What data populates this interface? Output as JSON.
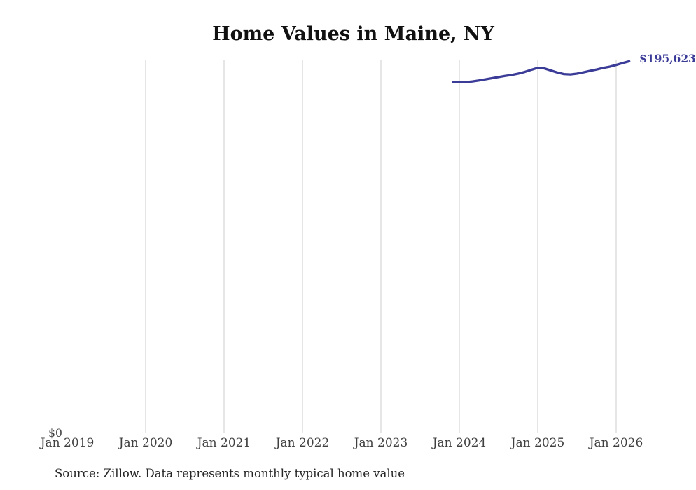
{
  "chart_data": {
    "type": "line",
    "title": "Home Values in Maine, NY",
    "source": "Source: Zillow. Data represents monthly typical home value",
    "line_color": "#3b3b98",
    "grid_color": "#cccccc",
    "grid": "vertical-only",
    "x_tick_labels": [
      "Jan 2019",
      "Jan 2020",
      "Jan 2021",
      "Jan 2022",
      "Jan 2023",
      "Jan 2024",
      "Jan 2025",
      "Jan 2026"
    ],
    "x_axis_range": [
      "Jan 2019",
      "Mar 2026"
    ],
    "y_axis": {
      "zero_label": "$0",
      "min": 0,
      "max_shown_value": 195623
    },
    "end_label": "$195,623",
    "series": [
      {
        "name": "Monthly typical home value",
        "points": [
          [
            "2023-12",
            184500
          ],
          [
            "2024-01",
            184500
          ],
          [
            "2024-02",
            184600
          ],
          [
            "2024-03",
            185000
          ],
          [
            "2024-04",
            185500
          ],
          [
            "2024-05",
            186100
          ],
          [
            "2024-06",
            186700
          ],
          [
            "2024-07",
            187300
          ],
          [
            "2024-08",
            187900
          ],
          [
            "2024-09",
            188400
          ],
          [
            "2024-10",
            189100
          ],
          [
            "2024-11",
            190000
          ],
          [
            "2024-12",
            191100
          ],
          [
            "2025-01",
            192200
          ],
          [
            "2025-02",
            191900
          ],
          [
            "2025-03",
            190800
          ],
          [
            "2025-04",
            189700
          ],
          [
            "2025-05",
            188900
          ],
          [
            "2025-06",
            188700
          ],
          [
            "2025-07",
            189100
          ],
          [
            "2025-08",
            189800
          ],
          [
            "2025-09",
            190600
          ],
          [
            "2025-10",
            191300
          ],
          [
            "2025-11",
            192100
          ],
          [
            "2025-12",
            192800
          ],
          [
            "2026-01",
            193700
          ],
          [
            "2026-02",
            194700
          ],
          [
            "2026-03",
            195623
          ]
        ]
      }
    ]
  }
}
